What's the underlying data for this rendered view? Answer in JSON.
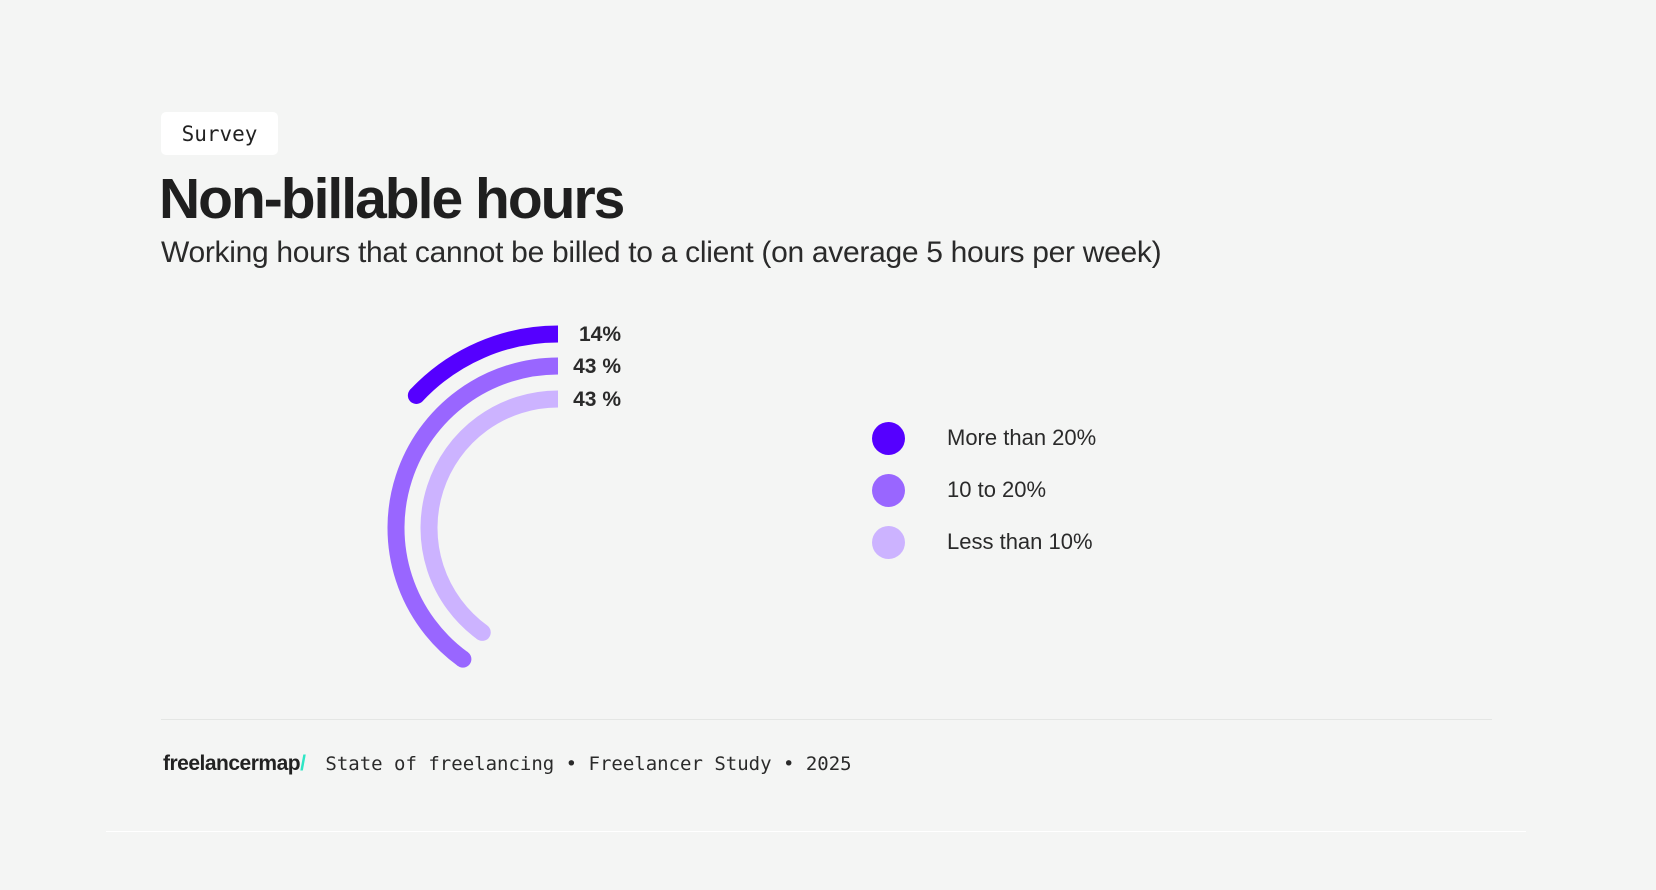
{
  "tag": "Survey",
  "title": "Non-billable hours",
  "subtitle": "Working hours that cannot be billed to a client (on average 5 hours per week)",
  "chart_data": {
    "type": "radial-bar",
    "series": [
      {
        "name": "More than 20%",
        "value": 14,
        "label": "14%",
        "color": "#5500ff"
      },
      {
        "name": "10 to 20%",
        "value": 43,
        "label": "43 %",
        "color": "#9966ff"
      },
      {
        "name": "Less than 10%",
        "value": 43,
        "label": "43 %",
        "color": "#ccb3ff"
      }
    ],
    "legend_placement": "right"
  },
  "footer": {
    "logo": "freelancermap",
    "logo_slash": "/",
    "text": "State of freelancing • Freelancer Study • 2025"
  }
}
